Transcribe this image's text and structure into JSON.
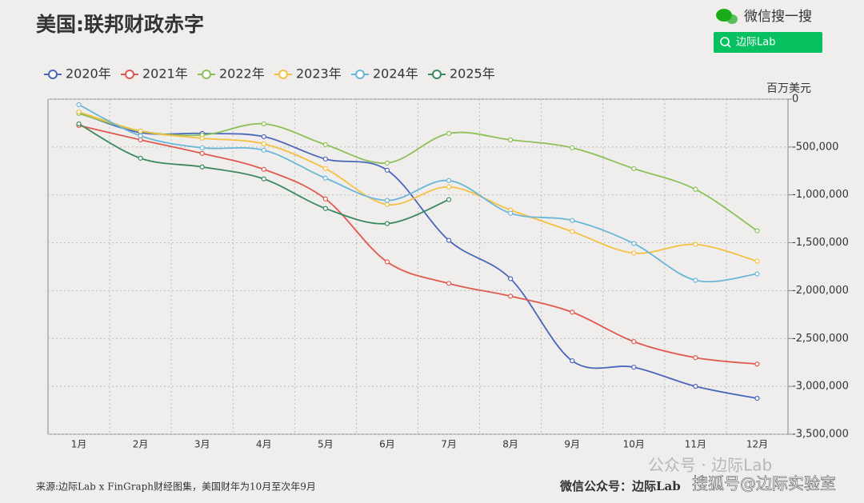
{
  "chart_data": {
    "type": "line",
    "title": "美国:联邦财政赤字",
    "y_axis_label": "百万美元",
    "source": "来源:边际Lab x FinGraph财经图集，美国财年为10月至次年9月",
    "credit": "微信公众号：边际Lab",
    "search_label": "微信搜一搜",
    "search_button": "边际Lab",
    "watermarks": [
      "公众号 · 边际Lab",
      "搜狐号@边际实验室"
    ],
    "categories": [
      "1月",
      "2月",
      "3月",
      "4月",
      "5月",
      "6月",
      "7月",
      "8月",
      "9月",
      "10月",
      "11月",
      "12月"
    ],
    "series": [
      {
        "name": "2020年",
        "color": "#4a66ba",
        "values": [
          -142000,
          -350000,
          -358000,
          -392000,
          -625000,
          -742000,
          -1475000,
          -1875000,
          -2733000,
          -2800000,
          -3000000,
          -3125000
        ]
      },
      {
        "name": "2021年",
        "color": "#e05a4f",
        "values": [
          -275000,
          -425000,
          -567000,
          -733000,
          -1042000,
          -1700000,
          -1925000,
          -2058000,
          -2225000,
          -2533000,
          -2700000,
          -2767000
        ]
      },
      {
        "name": "2022年",
        "color": "#8dc05a",
        "values": [
          -150000,
          -333000,
          -375000,
          -258000,
          -475000,
          -667000,
          -358000,
          -425000,
          -508000,
          -725000,
          -942000,
          -1375000
        ]
      },
      {
        "name": "2023年",
        "color": "#f5c040",
        "values": [
          -133000,
          -333000,
          -408000,
          -467000,
          -725000,
          -1100000,
          -917000,
          -1158000,
          -1383000,
          -1608000,
          -1517000,
          -1692000
        ]
      },
      {
        "name": "2024年",
        "color": "#6bb6d8",
        "values": [
          -58000,
          -383000,
          -508000,
          -533000,
          -825000,
          -1058000,
          -850000,
          -1192000,
          -1267000,
          -1508000,
          -1892000,
          -1825000
        ]
      },
      {
        "name": "2025年",
        "color": "#3a8a5e",
        "values": [
          -258000,
          -617000,
          -708000,
          -833000,
          -1142000,
          -1300000,
          -1050000,
          null,
          null,
          null,
          null,
          null
        ]
      }
    ],
    "ylim": [
      -3500000,
      0
    ],
    "yticks": [
      0,
      {
        "value": -500000,
        "label": "-500,000"
      },
      {
        "value": -1000000,
        "label": "-1,000,000"
      },
      {
        "value": -1500000,
        "label": "-1,500,000"
      },
      {
        "value": -2000000,
        "label": "-2,000,000"
      },
      {
        "value": -2500000,
        "label": "-2,500,000"
      },
      {
        "value": -3000000,
        "label": "-3,000,000"
      },
      {
        "value": -3500000,
        "label": "-3,500,000"
      }
    ],
    "grid": true,
    "legend": "top"
  }
}
